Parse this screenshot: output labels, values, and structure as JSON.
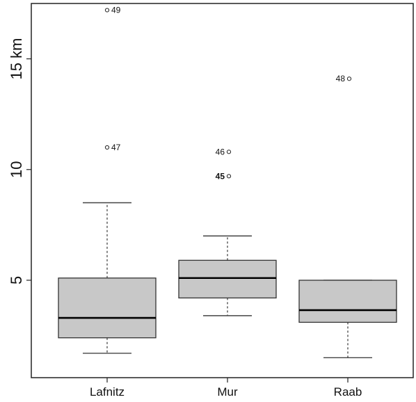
{
  "chart_data": {
    "type": "boxplot",
    "title": "",
    "xlabel": "",
    "ylabel": "",
    "yunit": "km",
    "ylim": [
      0.6,
      17.5
    ],
    "y_ticks": [
      5,
      10,
      15
    ],
    "y_tick_labels": [
      "5",
      "10",
      "15 km"
    ],
    "grid": false,
    "categories": [
      "Lafnitz",
      "Mur",
      "Raab"
    ],
    "boxes": [
      {
        "category": "Lafnitz",
        "whisker_low": 1.7,
        "q1": 2.4,
        "median": 3.3,
        "q3": 5.1,
        "whisker_high": 8.5,
        "outliers": [
          {
            "value": 11.0,
            "label": "47",
            "bold": false
          },
          {
            "value": 17.2,
            "label": "49",
            "bold": false
          }
        ]
      },
      {
        "category": "Mur",
        "whisker_low": 3.4,
        "q1": 4.2,
        "median": 5.1,
        "q3": 5.9,
        "whisker_high": 7.0,
        "outliers": [
          {
            "value": 9.7,
            "label": "45",
            "bold": true
          },
          {
            "value": 10.8,
            "label": "46",
            "bold": false
          }
        ]
      },
      {
        "category": "Raab",
        "whisker_low": 1.5,
        "q1": 3.1,
        "median": 3.65,
        "q3": 5.0,
        "whisker_high": 5.0,
        "outliers": [
          {
            "value": 14.1,
            "label": "48",
            "bold": false
          }
        ]
      }
    ],
    "colors": {
      "box_fill": "#c8c8c8",
      "box_stroke": "#333333",
      "median": "#000000",
      "whisker": "#444444",
      "axis": "#222222"
    }
  }
}
